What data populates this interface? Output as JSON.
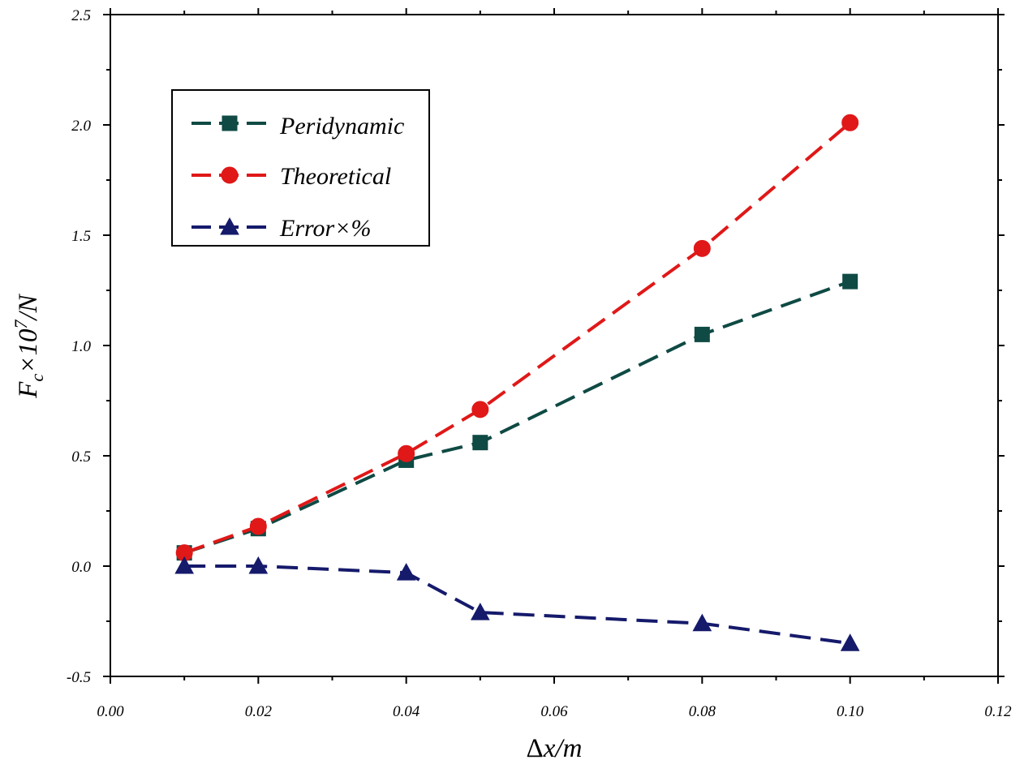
{
  "chart_data": {
    "type": "line",
    "title": "",
    "xlabel_parts": [
      "Δ",
      "x/m"
    ],
    "ylabel_parts": [
      "F",
      "c",
      "×10",
      "7",
      "/N"
    ],
    "xlim": [
      0.0,
      0.12
    ],
    "ylim": [
      -0.5,
      2.5
    ],
    "xticks": [
      0.0,
      0.02,
      0.04,
      0.06,
      0.08,
      0.1,
      0.12
    ],
    "xtick_labels": [
      "0.00",
      "0.02",
      "0.04",
      "0.06",
      "0.08",
      "0.10",
      "0.12"
    ],
    "yticks": [
      -0.5,
      0.0,
      0.5,
      1.0,
      1.5,
      2.0,
      2.5
    ],
    "ytick_labels": [
      "-0.5",
      "0.0",
      "0.5",
      "1.0",
      "1.5",
      "2.0",
      "2.5"
    ],
    "grid": false,
    "legend_position": "top-left",
    "series": [
      {
        "name": "Peridynamic",
        "marker": "square",
        "color": "#0f4a44",
        "x": [
          0.01,
          0.02,
          0.04,
          0.05,
          0.08,
          0.1
        ],
        "y": [
          0.06,
          0.17,
          0.48,
          0.56,
          1.05,
          1.29
        ]
      },
      {
        "name": "Theoretical",
        "marker": "circle",
        "color": "#e01818",
        "x": [
          0.01,
          0.02,
          0.04,
          0.05,
          0.08,
          0.1
        ],
        "y": [
          0.06,
          0.18,
          0.51,
          0.71,
          1.44,
          2.01
        ]
      },
      {
        "name": "Error×%",
        "marker": "triangle",
        "color": "#151a6b",
        "x": [
          0.01,
          0.02,
          0.04,
          0.05,
          0.08,
          0.1
        ],
        "y": [
          0.0,
          0.0,
          -0.03,
          -0.21,
          -0.26,
          -0.35
        ]
      }
    ]
  }
}
